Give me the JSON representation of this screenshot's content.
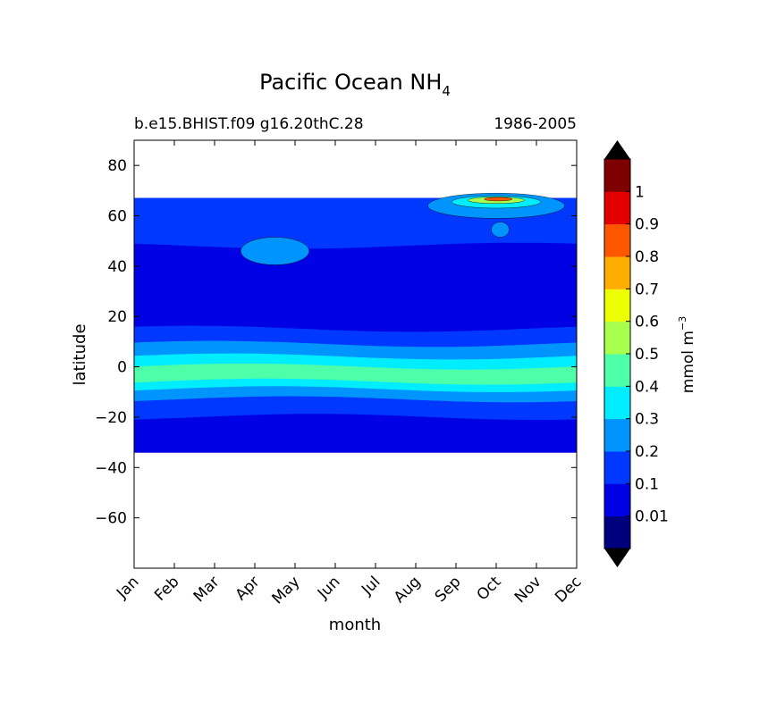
{
  "chart_data": {
    "type": "heatmap",
    "title": "Pacific Ocean NH",
    "title_subscript": "4",
    "subtitle_left": "b.e15.BHIST.f09 g16.20thC.28",
    "subtitle_right": "1986-2005",
    "xlabel": "month",
    "ylabel": "latitude",
    "x_categories": [
      "Jan",
      "Feb",
      "Mar",
      "Apr",
      "May",
      "Jun",
      "Jul",
      "Aug",
      "Sep",
      "Oct",
      "Nov",
      "Dec"
    ],
    "ylim": [
      -80,
      90
    ],
    "y_ticks": [
      80,
      60,
      40,
      20,
      0,
      -20,
      -40,
      -60
    ],
    "data_lat_range": [
      -34,
      67
    ],
    "colorbar": {
      "label": "mmol m",
      "label_exponent": "−3",
      "levels": [
        0,
        0.01,
        0.1,
        0.2,
        0.3,
        0.4,
        0.5,
        0.6,
        0.7,
        0.8,
        0.9,
        1,
        1.1
      ],
      "tick_labels": [
        "0.01",
        "0.1",
        "0.2",
        "0.3",
        "0.4",
        "0.5",
        "0.6",
        "0.7",
        "0.8",
        "0.9",
        "1"
      ],
      "tick_values": [
        0.01,
        0.1,
        0.2,
        0.3,
        0.4,
        0.5,
        0.6,
        0.7,
        0.8,
        0.9,
        1
      ],
      "colors": [
        "#00007f",
        "#0000e5",
        "#0038ff",
        "#0094ff",
        "#00edff",
        "#4effa9",
        "#a9ff4e",
        "#edff00",
        "#ffae00",
        "#ff5600",
        "#e50000",
        "#7f0000"
      ],
      "extend_under_color": "#000000",
      "extend_over_color": "#000000"
    },
    "bands": [
      {
        "lat_top": 67,
        "lat_bottom": 48,
        "value": 0.15
      },
      {
        "lat_top": 48,
        "lat_bottom": 29,
        "value": 0.08
      },
      {
        "lat_top": 29,
        "lat_bottom": 15,
        "value": 0.05
      },
      {
        "lat_top": 15,
        "lat_bottom": 9,
        "value": 0.15
      },
      {
        "lat_top": 9,
        "lat_bottom": 4,
        "value": 0.25
      },
      {
        "lat_top": 4,
        "lat_bottom": 0,
        "value": 0.35
      },
      {
        "lat_top": 0,
        "lat_bottom": -6,
        "value": 0.45
      },
      {
        "lat_top": -6,
        "lat_bottom": -9,
        "value": 0.35
      },
      {
        "lat_top": -9,
        "lat_bottom": -13,
        "value": 0.25
      },
      {
        "lat_top": -13,
        "lat_bottom": -20,
        "value": 0.15
      },
      {
        "lat_top": -20,
        "lat_bottom": -34,
        "value": 0.05
      }
    ],
    "features": [
      {
        "name": "feature-patch-apr-40N",
        "month_center": 3.5,
        "lat_center": 46,
        "month_radius": 0.85,
        "lat_radius": 5.5,
        "value": 0.25
      },
      {
        "name": "feature-patch-oct-55N",
        "month_center": 9.1,
        "lat_center": 54.5,
        "month_radius": 0.22,
        "lat_radius": 3,
        "value": 0.25
      },
      {
        "name": "feature-arctic-oct-outer",
        "month_center": 9.0,
        "lat_center": 64,
        "month_radius": 1.7,
        "lat_radius": 5,
        "value": 0.25
      },
      {
        "name": "feature-arctic-oct-mid",
        "month_center": 9.0,
        "lat_center": 65.5,
        "month_radius": 1.1,
        "lat_radius": 2.5,
        "value": 0.35
      },
      {
        "name": "feature-arctic-oct-inner",
        "month_center": 9.0,
        "lat_center": 66.2,
        "month_radius": 0.7,
        "lat_radius": 1.3,
        "value": 0.55
      },
      {
        "name": "feature-arctic-oct-peak",
        "month_center": 9.05,
        "lat_center": 66.6,
        "month_radius": 0.35,
        "lat_radius": 0.7,
        "value": 0.85
      }
    ]
  }
}
